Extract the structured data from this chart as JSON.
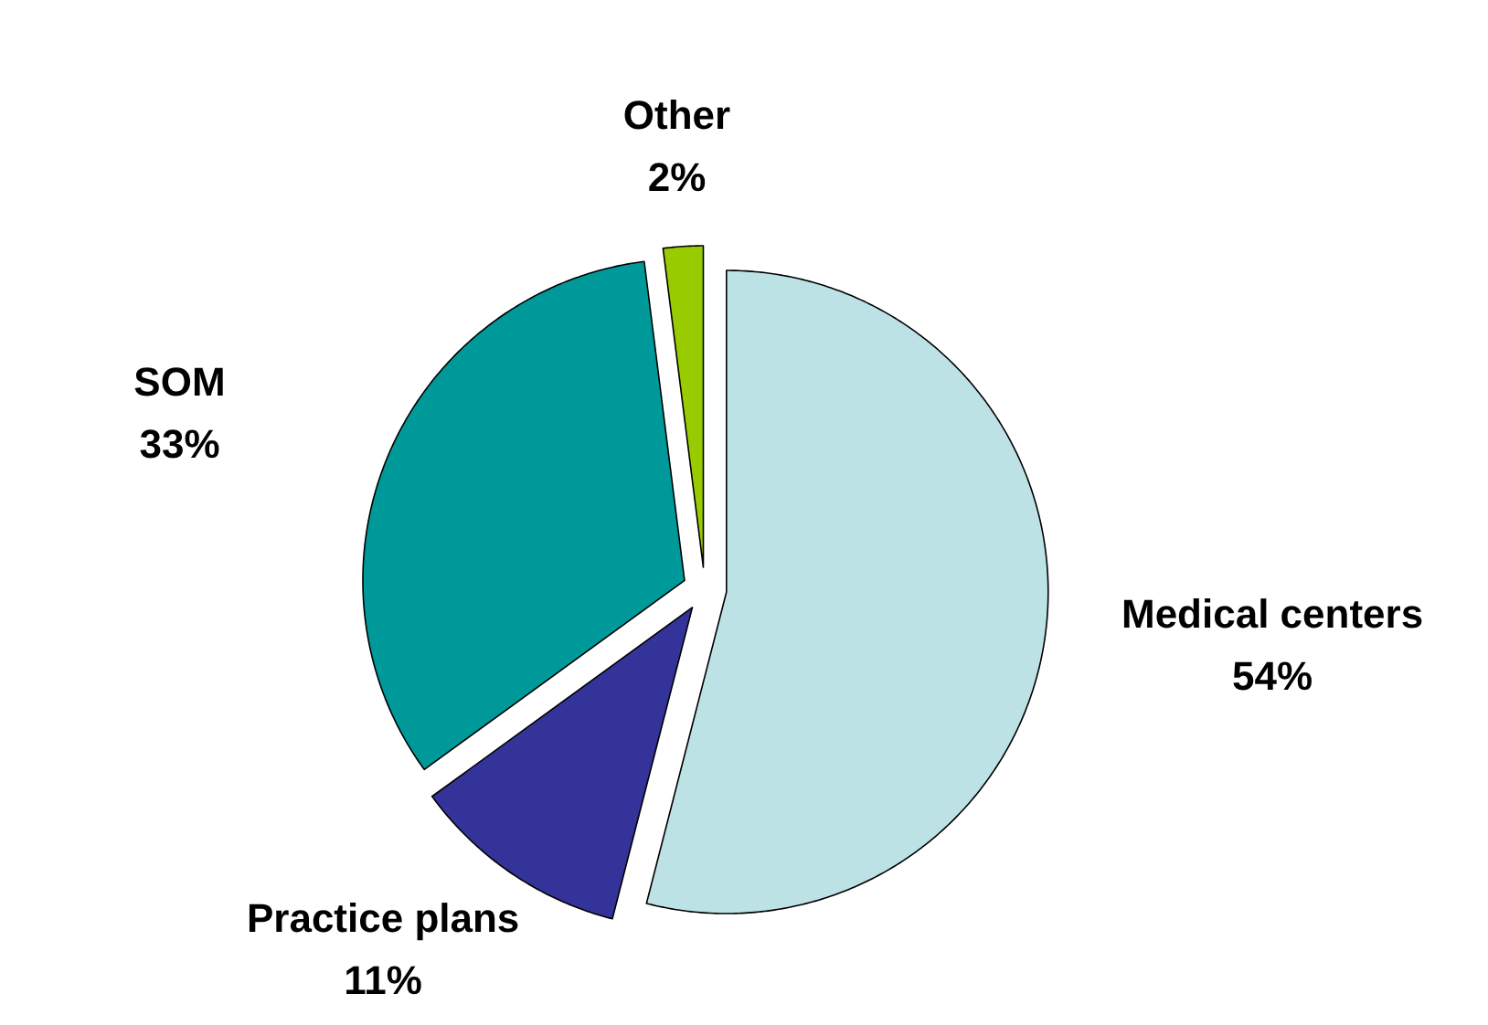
{
  "chart_data": {
    "type": "pie",
    "categories": [
      "Medical centers",
      "Practice plans",
      "SOM",
      "Other"
    ],
    "values": [
      54,
      11,
      33,
      2
    ],
    "colors": [
      "#bde2e6",
      "#333399",
      "#009999",
      "#99cc00"
    ],
    "value_labels": [
      "54%",
      "11%",
      "33%",
      "2%"
    ]
  }
}
